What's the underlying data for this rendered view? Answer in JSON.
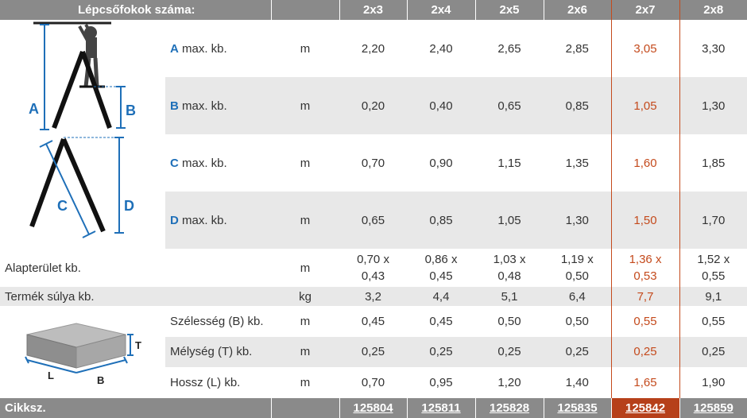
{
  "header": {
    "title": "Lépcsőfokok száma:",
    "columns": [
      "2x3",
      "2x4",
      "2x5",
      "2x6",
      "2x7",
      "2x8"
    ]
  },
  "rows": {
    "a": {
      "letter": "A",
      "label": " max. kb.",
      "unit": "m",
      "values": [
        "2,20",
        "2,40",
        "2,65",
        "2,85",
        "3,05",
        "3,30"
      ]
    },
    "b": {
      "letter": "B",
      "label": " max. kb.",
      "unit": "m",
      "values": [
        "0,20",
        "0,40",
        "0,65",
        "0,85",
        "1,05",
        "1,30"
      ]
    },
    "c": {
      "letter": "C",
      "label": " max. kb.",
      "unit": "m",
      "values": [
        "0,70",
        "0,90",
        "1,15",
        "1,35",
        "1,60",
        "1,85"
      ]
    },
    "d": {
      "letter": "D",
      "label": " max. kb.",
      "unit": "m",
      "values": [
        "0,65",
        "0,85",
        "1,05",
        "1,30",
        "1,50",
        "1,70"
      ]
    },
    "footprint": {
      "label": "Alapterület kb.",
      "unit": "m",
      "values": [
        [
          "0,70 x",
          "0,43"
        ],
        [
          "0,86 x",
          "0,45"
        ],
        [
          "1,03 x",
          "0,48"
        ],
        [
          "1,19 x",
          "0,50"
        ],
        [
          "1,36 x",
          "0,53"
        ],
        [
          "1,52 x",
          "0,55"
        ]
      ]
    },
    "weight": {
      "label": "Termék súlya kb.",
      "unit": "kg",
      "values": [
        "3,2",
        "4,4",
        "5,1",
        "6,4",
        "7,7",
        "9,1"
      ]
    },
    "width": {
      "label": "Szélesség (B) kb.",
      "unit": "m",
      "values": [
        "0,45",
        "0,45",
        "0,50",
        "0,50",
        "0,55",
        "0,55"
      ]
    },
    "depth": {
      "label": "Mélység (T) kb.",
      "unit": "m",
      "values": [
        "0,25",
        "0,25",
        "0,25",
        "0,25",
        "0,25",
        "0,25"
      ]
    },
    "length": {
      "label": "Hossz (L) kb.",
      "unit": "m",
      "values": [
        "0,70",
        "0,95",
        "1,20",
        "1,40",
        "1,65",
        "1,90"
      ]
    }
  },
  "footer": {
    "label": "Cikksz.",
    "codes": [
      "125804",
      "125811",
      "125828",
      "125835",
      "125842",
      "125859"
    ]
  },
  "diagrams": {
    "ladder_labels": {
      "a": "A",
      "b": "B",
      "c": "C",
      "d": "D"
    },
    "box_labels": {
      "t": "T",
      "l": "L",
      "b": "B"
    }
  },
  "colors": {
    "header_bg": "#8a8a8a",
    "highlight": "#c44a1c",
    "label_blue": "#1e6fb8",
    "stripe": "#e8e8e8"
  }
}
